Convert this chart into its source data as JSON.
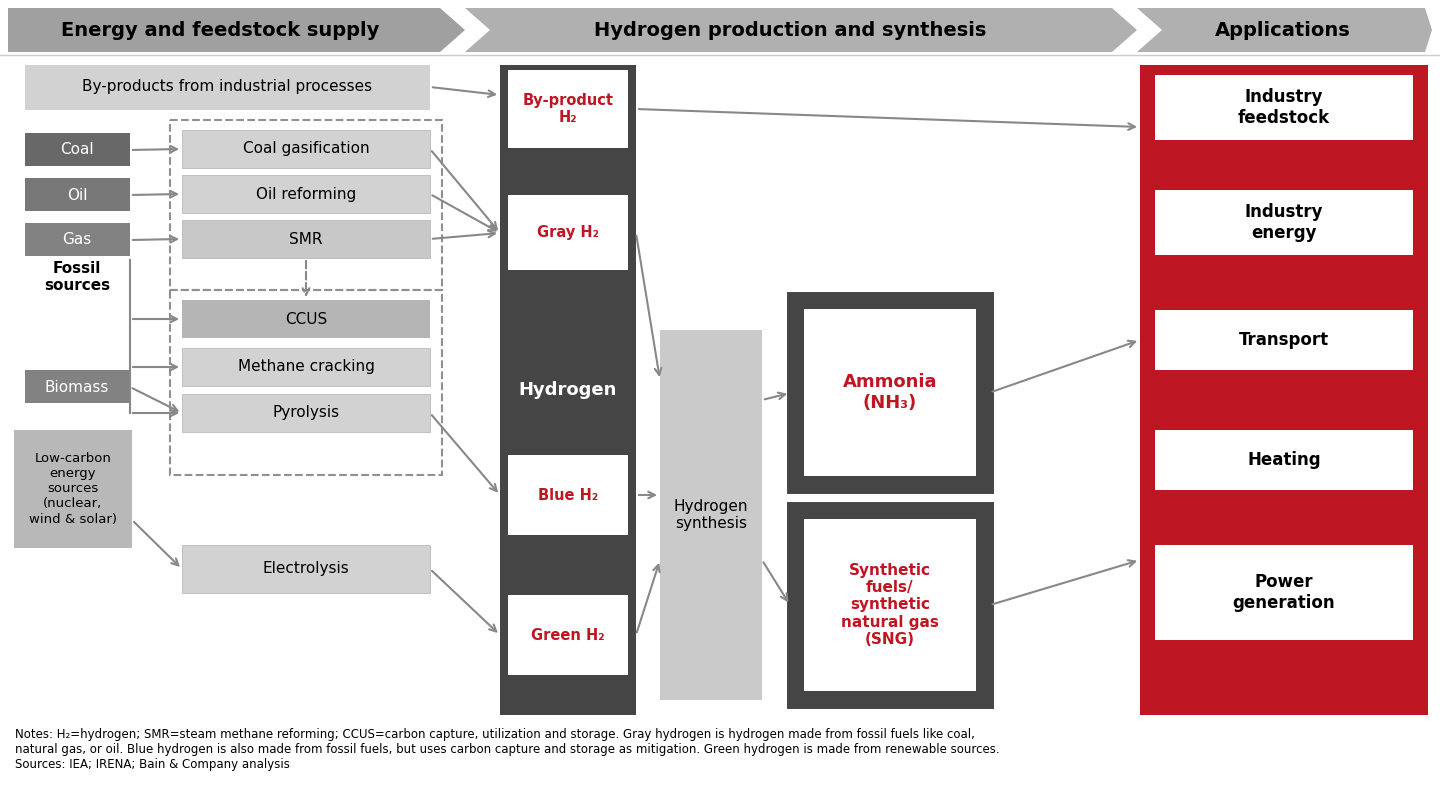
{
  "title_col1": "Energy and feedstock supply",
  "title_col2": "Hydrogen production and synthesis",
  "title_col3": "Applications",
  "hdr_gray1": "#a0a0a0",
  "hdr_gray2": "#b0b0b0",
  "dark_col": "#454545",
  "synth_gray": "#c8c8c8",
  "red_col": "#be1622",
  "white": "#ffffff",
  "black": "#000000",
  "arrow_col": "#888888",
  "box_light": "#d0d0d0",
  "box_mid": "#c0c0c0",
  "box_ccus": "#b0b0b0",
  "src_dark": "#686868",
  "src_mid": "#787878",
  "lowcarbon_bg": "#b8b8b8",
  "byproduct_bg": "#d0d0d0",
  "notes": "Notes: H₂=hydrogen; SMR=steam methane reforming; CCUS=carbon capture, utilization and storage. Gray hydrogen is hydrogen made from fossil fuels like coal,\nnatural gas, or oil. Blue hydrogen is also made from fossil fuels, but uses carbon capture and storage as mitigation. Green hydrogen is made from renewable sources.\nSources: IEA; IRENA; Bain & Company analysis"
}
